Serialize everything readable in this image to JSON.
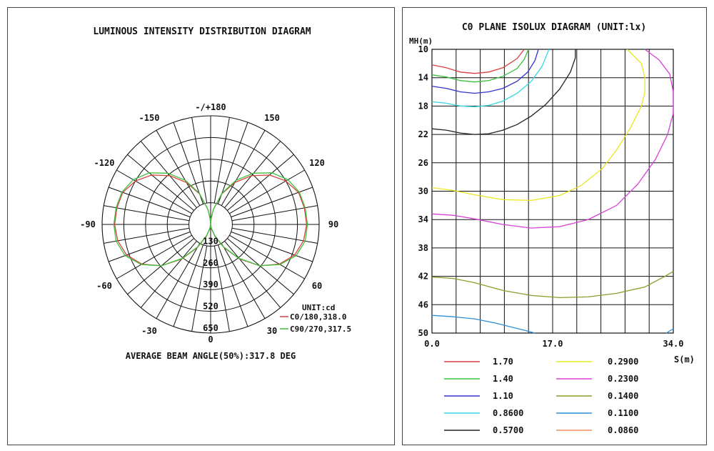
{
  "chart_data": [
    {
      "type": "polar",
      "title": "LUMINOUS INTENSITY DISTRIBUTION DIAGRAM",
      "unit_label": "UNIT:cd",
      "footer": "AVERAGE BEAM ANGLE(50%):317.8 DEG",
      "angle_labels": [
        {
          "deg": 0,
          "text": "0"
        },
        {
          "deg": 30,
          "text": "30"
        },
        {
          "deg": -30,
          "text": "-30"
        },
        {
          "deg": 60,
          "text": "60"
        },
        {
          "deg": -60,
          "text": "-60"
        },
        {
          "deg": 90,
          "text": "90"
        },
        {
          "deg": -90,
          "text": "-90"
        },
        {
          "deg": 120,
          "text": "120"
        },
        {
          "deg": -120,
          "text": "-120"
        },
        {
          "deg": 150,
          "text": "150"
        },
        {
          "deg": -150,
          "text": "-150"
        },
        {
          "deg": 180,
          "text": "-/+180"
        }
      ],
      "radial_ticks": [
        130,
        260,
        390,
        520,
        650
      ],
      "r_max": 650,
      "series": [
        {
          "name": "C0/180,318.0",
          "color": "#d94040",
          "angles": [
            0,
            10,
            20,
            30,
            40,
            50,
            60,
            70,
            80,
            90,
            100,
            110,
            120,
            130,
            140,
            150,
            160,
            170,
            175,
            180
          ],
          "values": [
            0,
            25,
            75,
            160,
            270,
            385,
            475,
            535,
            565,
            575,
            570,
            560,
            520,
            460,
            380,
            290,
            195,
            90,
            35,
            0
          ]
        },
        {
          "name": "C90/270,317.5",
          "color": "#3cc13c",
          "angles": [
            0,
            10,
            20,
            30,
            40,
            50,
            60,
            70,
            80,
            90,
            100,
            110,
            120,
            130,
            140,
            150,
            160,
            170,
            175,
            180
          ],
          "values": [
            0,
            20,
            70,
            155,
            265,
            385,
            480,
            545,
            575,
            580,
            575,
            565,
            535,
            480,
            400,
            305,
            200,
            90,
            35,
            0
          ]
        }
      ]
    },
    {
      "type": "contour",
      "title": "C0 PLANE ISOLUX DIAGRAM (UNIT:lx)",
      "ylabel": "MH(m)",
      "xlabel": "S(m)",
      "x_ticks": [
        "0.0",
        "17.0",
        "34.0"
      ],
      "xlim": [
        0,
        34
      ],
      "ylim": [
        10,
        50
      ],
      "y_ticks": [
        10,
        14,
        18,
        22,
        26,
        30,
        34,
        38,
        42,
        46,
        50
      ],
      "series": [
        {
          "name": "1.70",
          "color": "#d94040",
          "x": [
            0,
            2,
            4,
            6,
            8,
            10,
            12,
            13
          ],
          "y": [
            12.2,
            12.6,
            13.2,
            13.4,
            13.2,
            12.6,
            11.3,
            10
          ]
        },
        {
          "name": "1.40",
          "color": "#3cc13c",
          "x": [
            0,
            2,
            4,
            6,
            8,
            10,
            12,
            13,
            13.6
          ],
          "y": [
            13.6,
            13.9,
            14.4,
            14.6,
            14.4,
            13.8,
            12.7,
            11.4,
            10
          ]
        },
        {
          "name": "1.10",
          "color": "#3333cc",
          "x": [
            0,
            2,
            4,
            6,
            8,
            10,
            12,
            13.5,
            14.5,
            15
          ],
          "y": [
            15.2,
            15.5,
            16,
            16.2,
            16,
            15.5,
            14.5,
            13.2,
            11.6,
            10
          ]
        },
        {
          "name": "0.8600",
          "color": "#33d9e0",
          "x": [
            0,
            2,
            4,
            6,
            8,
            10,
            12,
            14,
            15.5,
            16.5
          ],
          "y": [
            17.4,
            17.6,
            18,
            18.1,
            17.9,
            17.3,
            16.2,
            14.5,
            12.4,
            10
          ]
        },
        {
          "name": "0.5700",
          "color": "#222222",
          "x": [
            0,
            2,
            4,
            6,
            8,
            10,
            12,
            14,
            16,
            18,
            19.5,
            20.2,
            20.2
          ],
          "y": [
            21.2,
            21.4,
            21.8,
            22,
            21.9,
            21.4,
            20.6,
            19.4,
            17.8,
            15.6,
            13.2,
            11.2,
            10
          ]
        },
        {
          "name": "0.2900",
          "color": "#e8e820",
          "x": [
            0,
            3,
            6,
            10,
            14,
            18,
            21,
            24,
            26,
            28,
            29.5,
            30,
            30,
            29.5,
            27.5
          ],
          "y": [
            29.5,
            29.9,
            30.5,
            31.2,
            31.3,
            30.6,
            29.2,
            26.8,
            24.2,
            21,
            18,
            16,
            14,
            12,
            10
          ]
        },
        {
          "name": "0.2300",
          "color": "#d940d9",
          "x": [
            0,
            3,
            6,
            10,
            14,
            18,
            22,
            26,
            29,
            31.5,
            33.2,
            34,
            34,
            33.5,
            32,
            30
          ],
          "y": [
            33.2,
            33.4,
            33.9,
            34.7,
            35.2,
            35,
            34,
            32,
            29,
            25.5,
            22,
            19,
            16,
            13.5,
            11.5,
            10
          ]
        },
        {
          "name": "0.1400",
          "color": "#8e9b28",
          "x": [
            0,
            3,
            6,
            10,
            14,
            18,
            22,
            26,
            30,
            33,
            34
          ],
          "y": [
            42.1,
            42.3,
            42.9,
            44,
            44.7,
            45,
            44.9,
            44.4,
            43.5,
            41.9,
            41.3
          ]
        },
        {
          "name": "0.1100",
          "color": "#2e8fd9",
          "x": [
            0,
            3,
            6,
            9,
            11,
            13,
            14.5
          ],
          "y": [
            47.5,
            47.7,
            48,
            48.6,
            49.1,
            49.6,
            50
          ]
        },
        {
          "name": "0.1100",
          "color": "#2e8fd9",
          "x": [
            33,
            34
          ],
          "y": [
            50,
            49.4
          ]
        },
        {
          "name": "0.0860",
          "color": "#f09060",
          "x": [],
          "y": []
        }
      ],
      "legend": [
        {
          "label": "1.70",
          "color": "#d94040"
        },
        {
          "label": "1.40",
          "color": "#3cc13c"
        },
        {
          "label": "1.10",
          "color": "#3333cc"
        },
        {
          "label": "0.8600",
          "color": "#33d9e0"
        },
        {
          "label": "0.5700",
          "color": "#222222"
        },
        {
          "label": "0.2900",
          "color": "#e8e820"
        },
        {
          "label": "0.2300",
          "color": "#d940d9"
        },
        {
          "label": "0.1400",
          "color": "#8e9b28"
        },
        {
          "label": "0.1100",
          "color": "#2e8fd9"
        },
        {
          "label": "0.0860",
          "color": "#f09060"
        }
      ]
    }
  ]
}
